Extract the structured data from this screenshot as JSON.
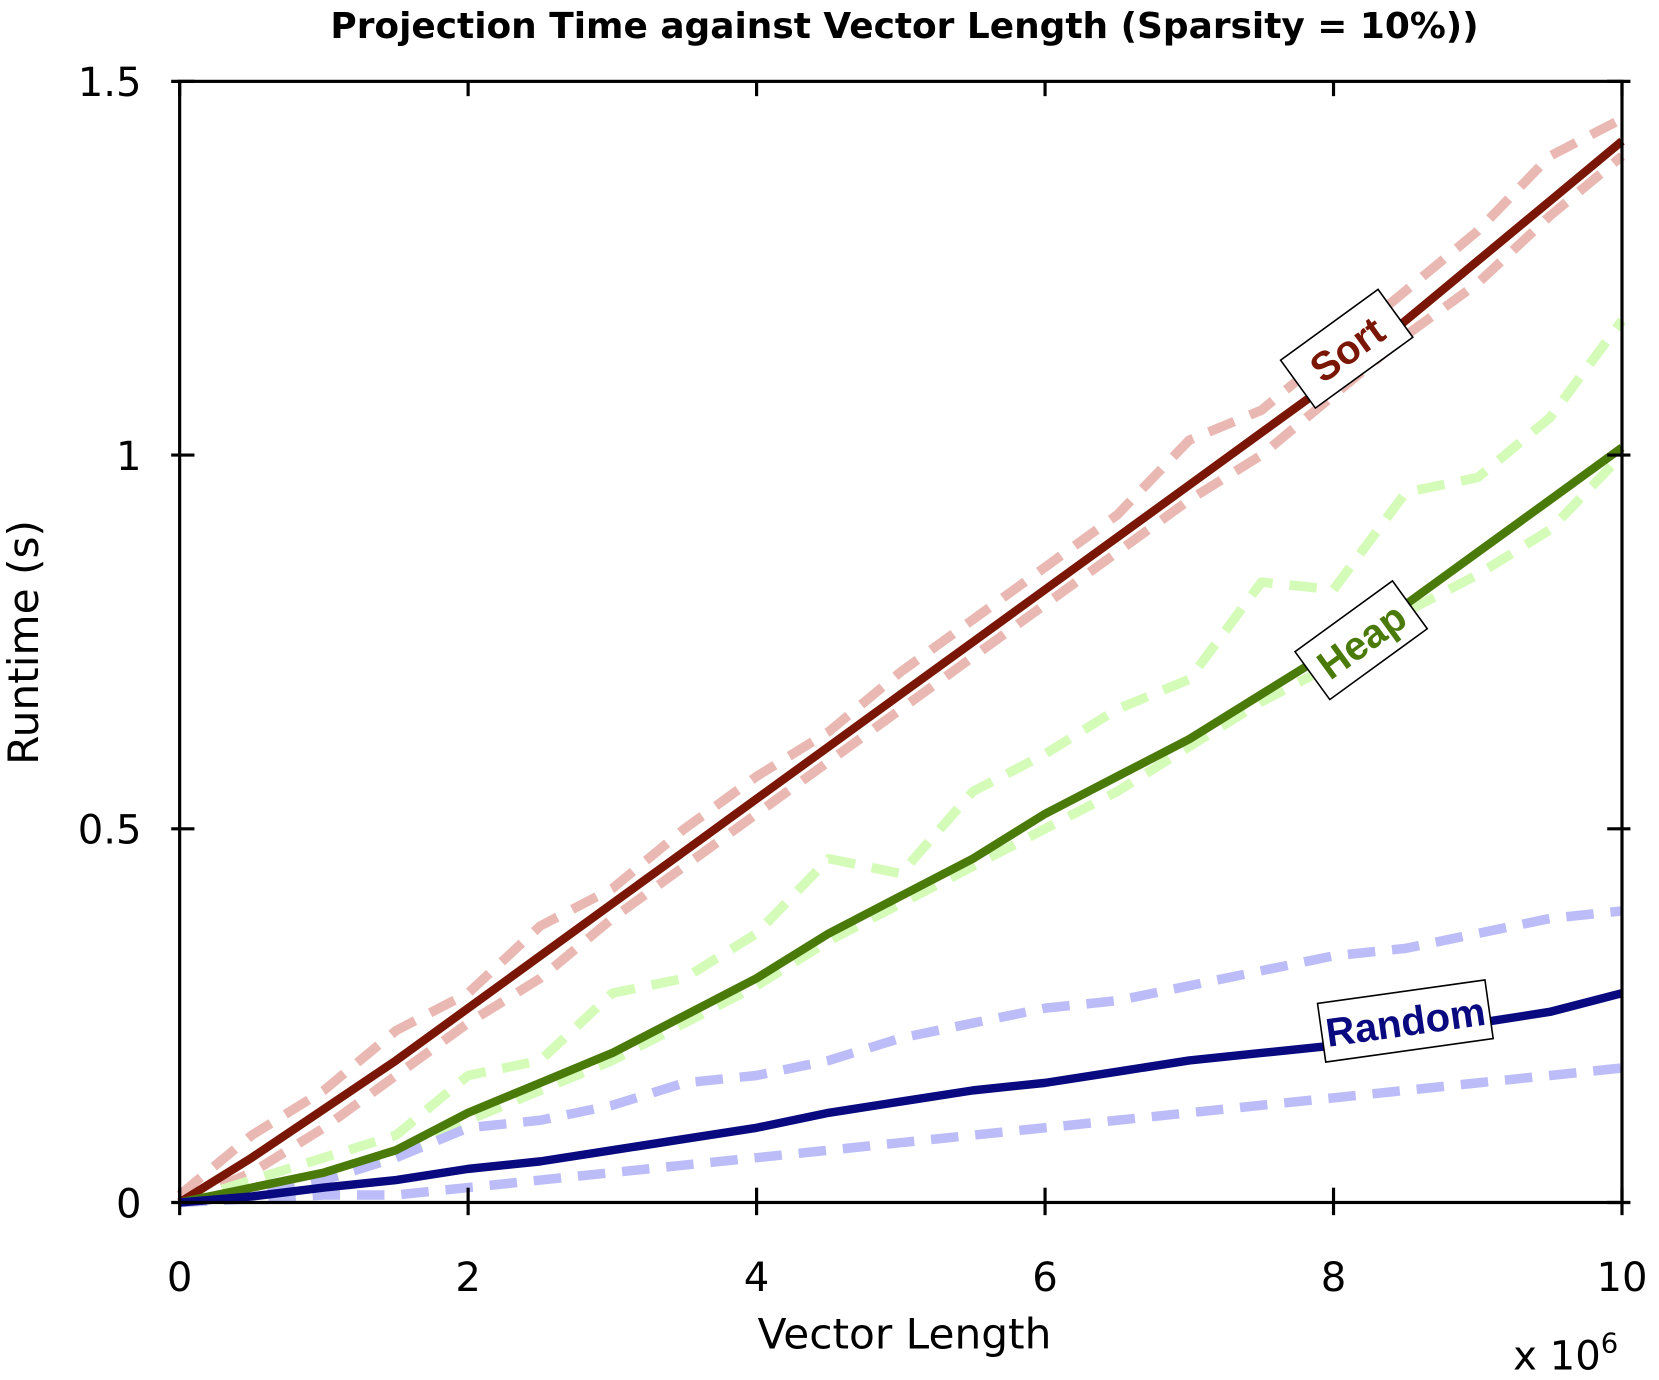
{
  "chart_data": {
    "type": "line",
    "title": "Projection Time against Vector Length (Sparsity = 10%))",
    "xlabel": "Vector Length",
    "ylabel": "Runtime (s)",
    "x_multiplier": "x 10",
    "x_multiplier_exp": "6",
    "xlim": [
      0,
      10
    ],
    "ylim": [
      0,
      1.5
    ],
    "xticks": [
      0,
      2,
      4,
      6,
      8,
      10
    ],
    "xtick_labels": [
      "0",
      "2",
      "4",
      "6",
      "8",
      "10"
    ],
    "yticks": [
      0,
      0.5,
      1,
      1.5
    ],
    "ytick_labels": [
      "0",
      "0.5",
      "1",
      "1.5"
    ],
    "grid": false,
    "x": [
      0,
      0.5,
      1,
      1.5,
      2,
      2.5,
      3,
      3.5,
      4,
      4.5,
      5,
      5.5,
      6,
      6.5,
      7,
      7.5,
      8,
      8.5,
      9,
      9.5,
      10
    ],
    "series": [
      {
        "name": "Sort upper",
        "style": "dashed",
        "color": "#eab8b2",
        "values": [
          0.01,
          0.09,
          0.15,
          0.23,
          0.28,
          0.37,
          0.42,
          0.5,
          0.57,
          0.63,
          0.71,
          0.78,
          0.85,
          0.92,
          1.02,
          1.06,
          1.14,
          1.22,
          1.3,
          1.4,
          1.45
        ]
      },
      {
        "name": "Sort lower",
        "style": "dashed",
        "color": "#eab8b2",
        "values": [
          0,
          0.04,
          0.1,
          0.17,
          0.24,
          0.3,
          0.38,
          0.45,
          0.52,
          0.59,
          0.66,
          0.73,
          0.8,
          0.87,
          0.94,
          1.0,
          1.08,
          1.16,
          1.23,
          1.32,
          1.4
        ]
      },
      {
        "name": "Heap upper",
        "style": "dashed",
        "color": "#d4fcb8",
        "values": [
          0,
          0.03,
          0.06,
          0.09,
          0.17,
          0.19,
          0.28,
          0.3,
          0.36,
          0.46,
          0.44,
          0.55,
          0.6,
          0.66,
          0.7,
          0.83,
          0.82,
          0.95,
          0.97,
          1.05,
          1.18
        ]
      },
      {
        "name": "Heap lower",
        "style": "dashed",
        "color": "#d4fcb8",
        "values": [
          0,
          0.015,
          0.035,
          0.06,
          0.11,
          0.15,
          0.19,
          0.24,
          0.29,
          0.35,
          0.4,
          0.45,
          0.5,
          0.55,
          0.61,
          0.67,
          0.72,
          0.79,
          0.84,
          0.9,
          1.0
        ]
      },
      {
        "name": "Random upper",
        "style": "dashed",
        "color": "#bcbcf8",
        "values": [
          0,
          0.01,
          0.03,
          0.06,
          0.1,
          0.11,
          0.13,
          0.16,
          0.17,
          0.19,
          0.22,
          0.24,
          0.26,
          0.27,
          0.29,
          0.31,
          0.33,
          0.34,
          0.36,
          0.38,
          0.39
        ]
      },
      {
        "name": "Random lower",
        "style": "dashed",
        "color": "#bcbcf8",
        "values": [
          0,
          0.005,
          0.01,
          0.01,
          0.02,
          0.03,
          0.04,
          0.05,
          0.06,
          0.07,
          0.08,
          0.09,
          0.1,
          0.11,
          0.12,
          0.13,
          0.14,
          0.15,
          0.16,
          0.17,
          0.18
        ]
      },
      {
        "name": "Sort",
        "style": "solid",
        "color": "#7a1606",
        "values": [
          0,
          0.06,
          0.125,
          0.19,
          0.26,
          0.33,
          0.4,
          0.47,
          0.54,
          0.61,
          0.68,
          0.75,
          0.82,
          0.89,
          0.96,
          1.03,
          1.1,
          1.18,
          1.26,
          1.34,
          1.42
        ]
      },
      {
        "name": "Heap",
        "style": "solid",
        "color": "#4a7a0a",
        "values": [
          0,
          0.02,
          0.04,
          0.07,
          0.12,
          0.16,
          0.2,
          0.25,
          0.3,
          0.36,
          0.41,
          0.46,
          0.52,
          0.57,
          0.62,
          0.68,
          0.74,
          0.8,
          0.87,
          0.94,
          1.01
        ]
      },
      {
        "name": "Random",
        "style": "solid",
        "color": "#0a0a80",
        "values": [
          0,
          0.008,
          0.02,
          0.03,
          0.045,
          0.055,
          0.07,
          0.085,
          0.1,
          0.12,
          0.135,
          0.15,
          0.16,
          0.175,
          0.19,
          0.2,
          0.21,
          0.225,
          0.24,
          0.255,
          0.28
        ]
      }
    ],
    "annotations": [
      {
        "text": "Sort",
        "color": "#7a1606",
        "x": 8.1,
        "y": 1.14,
        "angle": -36
      },
      {
        "text": "Heap",
        "color": "#4a7a0a",
        "x": 8.2,
        "y": 0.75,
        "angle": -36
      },
      {
        "text": "Random",
        "color": "#0a0a80",
        "x": 8.5,
        "y": 0.24,
        "angle": -8
      }
    ]
  }
}
